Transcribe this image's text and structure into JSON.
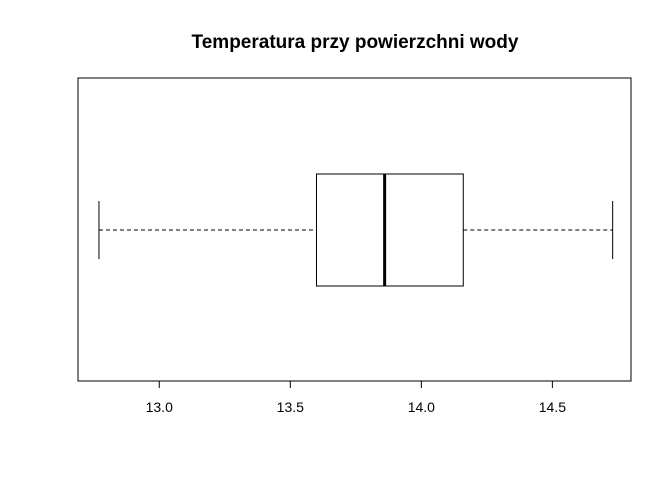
{
  "chart_data": {
    "type": "boxplot",
    "orientation": "horizontal",
    "title": "Temperatura przy powierzchni wody",
    "xlabel": "",
    "ylabel": "",
    "xlim": [
      12.69,
      14.8
    ],
    "x_ticks": [
      13.0,
      13.5,
      14.0,
      14.5
    ],
    "x_tick_labels": [
      "13.0",
      "13.5",
      "14.0",
      "14.5"
    ],
    "grid": false,
    "box": {
      "whisker_low": 12.77,
      "q1": 13.6,
      "median": 13.86,
      "q3": 14.16,
      "whisker_high": 14.73
    },
    "colors": {
      "line": "#000000",
      "box_fill": "#ffffff"
    }
  }
}
